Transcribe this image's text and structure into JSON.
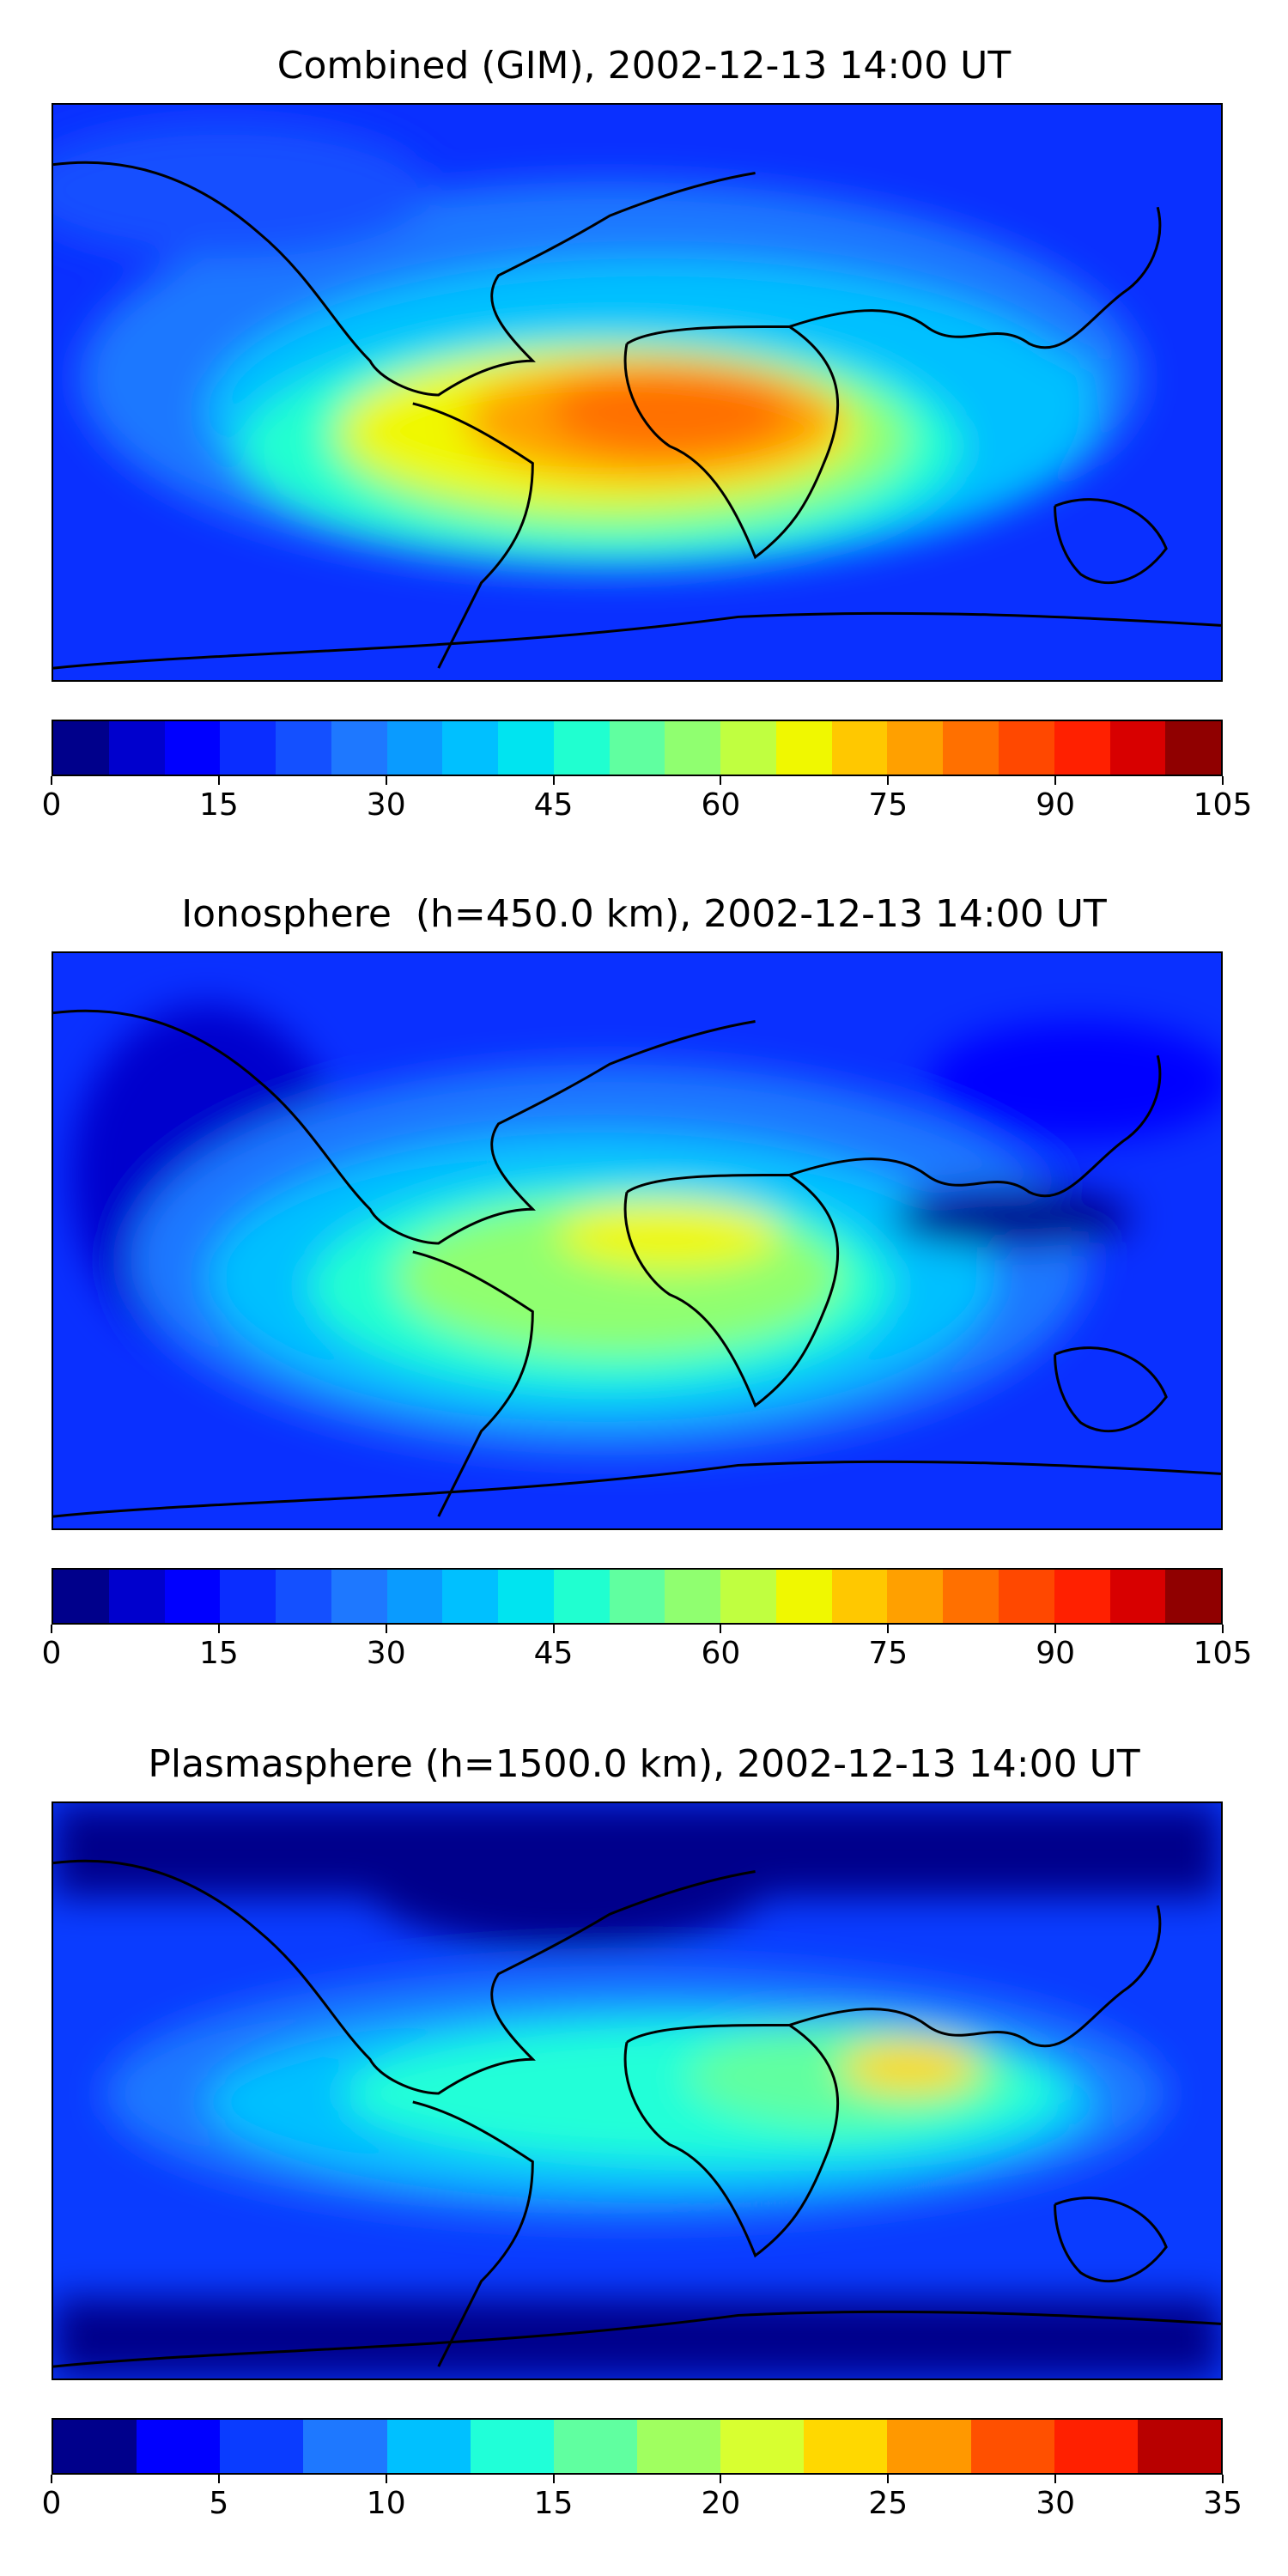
{
  "panels": [
    {
      "title": "Combined (GIM), 2002-12-13 14:00 UT",
      "colorbar": {
        "ticks": [
          "0",
          "15",
          "30",
          "45",
          "60",
          "75",
          "90",
          "105"
        ],
        "range": [
          0,
          105
        ],
        "colors": [
          "#00008b",
          "#0000cd",
          "#0000ff",
          "#0a2dff",
          "#1450ff",
          "#1e78ff",
          "#0a9bff",
          "#00c0ff",
          "#00e4f0",
          "#20ffd0",
          "#60ffa0",
          "#90ff70",
          "#c0ff40",
          "#f0f800",
          "#ffc800",
          "#ffa000",
          "#ff7000",
          "#ff4800",
          "#ff2000",
          "#d80000",
          "#900000"
        ]
      },
      "field": "combined"
    },
    {
      "title": "Ionosphere  (h=450.0 km), 2002-12-13 14:00 UT",
      "colorbar": {
        "ticks": [
          "0",
          "15",
          "30",
          "45",
          "60",
          "75",
          "90",
          "105"
        ],
        "range": [
          0,
          105
        ],
        "colors": [
          "#00008b",
          "#0000cd",
          "#0000ff",
          "#0a2dff",
          "#1450ff",
          "#1e78ff",
          "#0a9bff",
          "#00c0ff",
          "#00e4f0",
          "#20ffd0",
          "#60ffa0",
          "#90ff70",
          "#c0ff40",
          "#f0f800",
          "#ffc800",
          "#ffa000",
          "#ff7000",
          "#ff4800",
          "#ff2000",
          "#d80000",
          "#900000"
        ]
      },
      "field": "ionosphere"
    },
    {
      "title": "Plasmasphere (h=1500.0 km), 2002-12-13 14:00 UT",
      "colorbar": {
        "ticks": [
          "0",
          "5",
          "10",
          "15",
          "20",
          "25",
          "30",
          "35"
        ],
        "range": [
          0,
          35
        ],
        "colors": [
          "#00008b",
          "#0000ff",
          "#0a3cff",
          "#1e78ff",
          "#00c0ff",
          "#20ffd8",
          "#60ffa0",
          "#a0ff60",
          "#d8ff30",
          "#ffd800",
          "#ff9800",
          "#ff5000",
          "#ff2000",
          "#b80000"
        ]
      },
      "field": "plasmasphere"
    }
  ]
}
